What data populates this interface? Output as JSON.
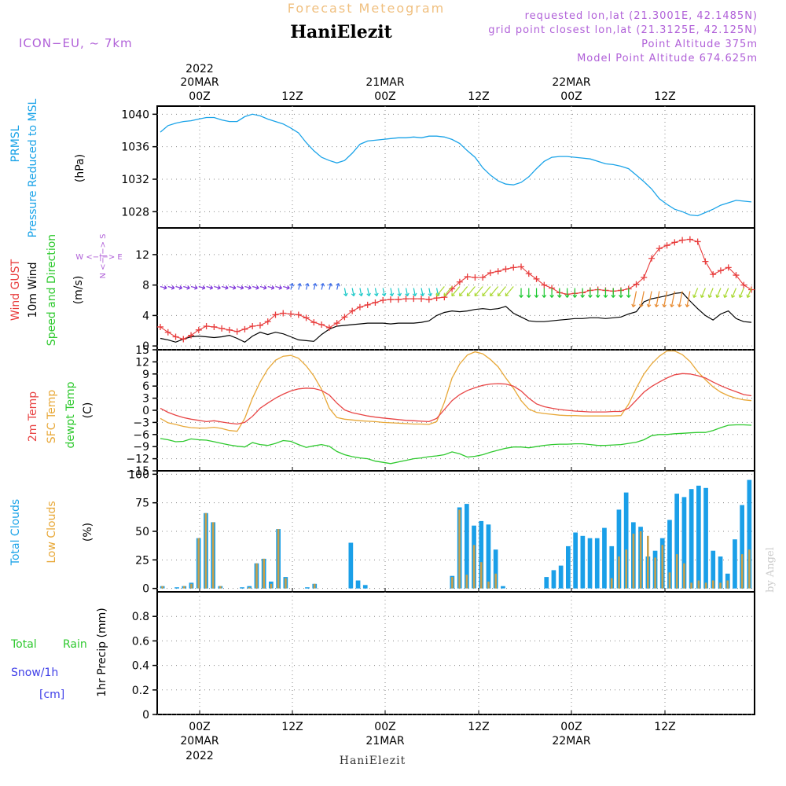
{
  "header": {
    "title": "Forecast Meteogram",
    "location": "HaniElezit",
    "model": "ICON−EU, ~ 7km",
    "requested": "requested lon,lat (21.3001E, 42.1485N)",
    "gridpoint": "grid point closest lon,lat (21.3125E, 42.125N)",
    "point_altitude": "Point Altitude 375m",
    "model_altitude": "Model Point Altitude 674.625m",
    "footer": "HaniElezit",
    "credit": "by Angel"
  },
  "time_axis": {
    "top": {
      "year": "2022",
      "d1": "20MAR",
      "d2": "21MAR",
      "d3": "22MAR",
      "z00": "00Z",
      "z12": "12Z"
    },
    "bottom": {
      "year": "2022",
      "d1": "20MAR",
      "d2": "21MAR",
      "d3": "22MAR",
      "z00": "00Z",
      "z12": "12Z"
    }
  },
  "panel_labels": {
    "p1": {
      "a": "PRMSL",
      "b": "Pressure Reduced to MSL",
      "unit": "(hPa)"
    },
    "p2": {
      "a": "Wind GUST",
      "b": "10m Wind",
      "c": "Speed and Direction",
      "unit": "(m/s)",
      "compass_ns": "N <−|−> S",
      "compass_we": "W <−|−> E"
    },
    "p3": {
      "a": "2m Temp",
      "b": "SFC Temp",
      "c": "dewpt Temp",
      "unit": "(C)"
    },
    "p4": {
      "a": "Total Clouds",
      "b": "Low Clouds",
      "unit": "(%)"
    },
    "p5": {
      "a": "Total",
      "a2": "Rain",
      "b": "Snow/1h",
      "b2": "[cm]",
      "unit": "1hr Precip (mm)"
    }
  },
  "colors": {
    "pressure": "#1aa3e8",
    "gust": "#e83c3c",
    "wind10m": "#000000",
    "t2m": "#e84545",
    "tsfc": "#e8a838",
    "dewpt": "#2ec92e",
    "total_clouds": "#1a9fe8",
    "low_clouds": "#c8a04a",
    "rain": "#2ec92e",
    "snow": "#4040e8",
    "labels_purple": "#b060d8",
    "title_orange": "#f0c080"
  },
  "chart_data": [
    {
      "type": "line",
      "name": "PRMSL",
      "ylabel": "(hPa)",
      "ylim": [
        1026,
        1041
      ],
      "yticks": [
        "1028",
        "1032",
        "1036",
        "1040"
      ],
      "ytick_values": [
        1028,
        1032,
        1036,
        1040
      ],
      "series": [
        {
          "values": [
            1037.8,
            1038.6,
            1038.9,
            1039.1,
            1039.2,
            1039.4,
            1039.6,
            1039.6,
            1039.3,
            1039.1,
            1039.1,
            1039.7,
            1040.0,
            1039.8,
            1039.4,
            1039.1,
            1038.8,
            1038.3,
            1037.7,
            1036.5,
            1035.5,
            1034.7,
            1034.3,
            1034.0,
            1034.3,
            1035.2,
            1036.3,
            1036.7,
            1036.8,
            1036.9,
            1037.0,
            1037.1,
            1037.1,
            1037.2,
            1037.1,
            1037.3,
            1037.3,
            1037.2,
            1036.9,
            1036.4,
            1035.5,
            1034.7,
            1033.4,
            1032.5,
            1031.8,
            1031.4,
            1031.3,
            1031.6,
            1032.3,
            1033.3,
            1034.2,
            1034.7,
            1034.8,
            1034.8,
            1034.7,
            1034.6,
            1034.5,
            1034.2,
            1033.9,
            1033.8,
            1033.6,
            1033.3,
            1032.5,
            1031.7,
            1030.8,
            1029.6,
            1028.9,
            1028.3,
            1028.0,
            1027.6,
            1027.5,
            1027.9,
            1028.3,
            1028.8,
            1029.1,
            1029.4,
            1029.3,
            1029.2
          ]
        }
      ]
    },
    {
      "type": "line",
      "name": "Wind",
      "ylabel": "(m/s)",
      "ylim": [
        -0.5,
        15.5
      ],
      "yticks": [
        "0",
        "4",
        "8",
        "12"
      ],
      "ytick_values": [
        0,
        4,
        8,
        12
      ],
      "series": [
        {
          "key": "gust",
          "values": [
            2.5,
            1.8,
            1.2,
            0.9,
            1.4,
            2.1,
            2.6,
            2.5,
            2.3,
            2.1,
            1.9,
            2.2,
            2.6,
            2.7,
            3.2,
            4.1,
            4.3,
            4.2,
            4.1,
            3.7,
            3.1,
            2.8,
            2.4,
            3.0,
            3.8,
            4.6,
            5.1,
            5.4,
            5.7,
            6.0,
            6.1,
            6.1,
            6.2,
            6.2,
            6.2,
            6.1,
            6.3,
            6.4,
            7.5,
            8.4,
            9.1,
            9.0,
            9.0,
            9.6,
            9.8,
            10.1,
            10.3,
            10.4,
            9.5,
            8.8,
            8.0,
            7.6,
            7.0,
            6.8,
            6.9,
            7.0,
            7.3,
            7.4,
            7.3,
            7.2,
            7.3,
            7.5,
            8.1,
            9.0,
            11.5,
            12.8,
            13.2,
            13.6,
            13.9,
            14.0,
            13.7,
            11.1,
            9.4,
            9.9,
            10.3,
            9.3,
            8.0,
            7.4
          ]
        },
        {
          "key": "wind10m",
          "values": [
            1.0,
            0.8,
            0.5,
            0.9,
            1.2,
            1.3,
            1.2,
            1.1,
            1.2,
            1.4,
            1.0,
            0.5,
            1.3,
            1.8,
            1.5,
            1.8,
            1.6,
            1.2,
            0.8,
            0.7,
            0.6,
            1.5,
            2.2,
            2.6,
            2.7,
            2.8,
            2.9,
            3.0,
            3.0,
            3.0,
            2.9,
            3.0,
            3.0,
            3.0,
            3.1,
            3.3,
            4.0,
            4.4,
            4.6,
            4.5,
            4.6,
            4.8,
            4.9,
            4.8,
            4.9,
            5.2,
            4.3,
            3.8,
            3.3,
            3.2,
            3.2,
            3.3,
            3.4,
            3.5,
            3.6,
            3.6,
            3.7,
            3.7,
            3.6,
            3.7,
            3.8,
            4.2,
            4.5,
            5.8,
            6.2,
            6.4,
            6.6,
            6.9,
            7.0,
            5.9,
            4.9,
            4.0,
            3.4,
            4.2,
            4.6,
            3.6,
            3.2,
            3.1
          ]
        }
      ]
    },
    {
      "type": "line",
      "name": "Temperature",
      "ylabel": "(C)",
      "ylim": [
        -15,
        15
      ],
      "yticks": [
        "15",
        "12",
        "9",
        "6",
        "3",
        "0",
        "−3",
        "−6",
        "−9",
        "−12",
        "−15"
      ],
      "ytick_values": [
        15,
        12,
        9,
        6,
        3,
        0,
        -3,
        -6,
        -9,
        -12,
        -15
      ],
      "series": [
        {
          "key": "t2m",
          "values": [
            0.5,
            -0.5,
            -1.2,
            -1.8,
            -2.2,
            -2.5,
            -2.8,
            -2.6,
            -2.9,
            -3.2,
            -3.4,
            -3.0,
            -1.5,
            0.5,
            1.8,
            3.0,
            4.0,
            4.8,
            5.3,
            5.5,
            5.4,
            4.9,
            3.8,
            1.8,
            0.1,
            -0.6,
            -1.0,
            -1.4,
            -1.7,
            -1.9,
            -2.1,
            -2.3,
            -2.5,
            -2.6,
            -2.7,
            -2.8,
            -2.0,
            0.2,
            2.4,
            3.9,
            4.9,
            5.6,
            6.2,
            6.5,
            6.6,
            6.5,
            6.0,
            4.8,
            3.0,
            1.6,
            0.9,
            0.5,
            0.2,
            0.0,
            -0.2,
            -0.3,
            -0.4,
            -0.4,
            -0.4,
            -0.3,
            -0.3,
            0.5,
            2.5,
            4.5,
            5.9,
            7.0,
            8.0,
            8.8,
            9.1,
            9.0,
            8.6,
            8.0,
            7.0,
            6.1,
            5.3,
            4.6,
            3.9,
            3.6
          ]
        },
        {
          "key": "tsfc",
          "values": [
            -2.0,
            -3.1,
            -3.5,
            -4.0,
            -4.3,
            -4.4,
            -4.4,
            -4.2,
            -4.5,
            -5.0,
            -5.2,
            -2.0,
            3.0,
            7.0,
            10.2,
            12.4,
            13.4,
            13.6,
            12.9,
            11.0,
            8.5,
            5.2,
            0.5,
            -1.8,
            -2.2,
            -2.4,
            -2.6,
            -2.7,
            -2.8,
            -3.0,
            -3.1,
            -3.2,
            -3.3,
            -3.4,
            -3.4,
            -3.5,
            -2.8,
            2.0,
            8.0,
            11.5,
            13.7,
            14.5,
            14.0,
            12.6,
            10.8,
            8.0,
            5.5,
            2.4,
            0.3,
            -0.5,
            -0.8,
            -1.0,
            -1.2,
            -1.3,
            -1.3,
            -1.4,
            -1.4,
            -1.4,
            -1.4,
            -1.4,
            -1.3,
            1.5,
            5.5,
            9.0,
            11.5,
            13.4,
            14.7,
            14.7,
            13.8,
            12.1,
            9.6,
            7.6,
            5.8,
            4.5,
            3.6,
            3.0,
            2.6,
            2.4
          ]
        },
        {
          "key": "dewpt",
          "values": [
            -7.0,
            -7.3,
            -7.8,
            -7.7,
            -7.1,
            -7.3,
            -7.4,
            -7.8,
            -8.2,
            -8.6,
            -8.9,
            -9.1,
            -8.0,
            -8.5,
            -8.7,
            -8.2,
            -7.5,
            -7.7,
            -8.5,
            -9.2,
            -8.8,
            -8.5,
            -8.9,
            -10.2,
            -11.0,
            -11.5,
            -11.8,
            -12.0,
            -12.6,
            -12.9,
            -13.2,
            -12.8,
            -12.4,
            -12.0,
            -11.8,
            -11.5,
            -11.3,
            -11.0,
            -10.3,
            -10.8,
            -11.6,
            -11.4,
            -11.0,
            -10.4,
            -9.9,
            -9.4,
            -9.1,
            -9.1,
            -9.3,
            -9.0,
            -8.7,
            -8.5,
            -8.4,
            -8.4,
            -8.3,
            -8.3,
            -8.5,
            -8.7,
            -8.7,
            -8.6,
            -8.5,
            -8.2,
            -7.9,
            -7.3,
            -6.3,
            -6.0,
            -6.0,
            -5.8,
            -5.7,
            -5.6,
            -5.5,
            -5.5,
            -5.0,
            -4.3,
            -3.7,
            -3.6,
            -3.6,
            -3.7
          ]
        }
      ]
    },
    {
      "type": "bar",
      "name": "Clouds",
      "ylabel": "(%)",
      "ylim": [
        -3,
        103
      ],
      "yticks": [
        "0",
        "25",
        "50",
        "75",
        "100"
      ],
      "ytick_values": [
        0,
        25,
        50,
        75,
        100
      ],
      "series": [
        {
          "key": "total",
          "values": [
            2,
            0,
            1,
            2,
            5,
            44,
            66,
            58,
            2,
            0,
            0,
            1,
            2,
            22,
            26,
            6,
            52,
            10,
            0,
            0,
            1,
            4,
            0,
            0,
            0,
            0,
            40,
            7,
            3,
            0,
            0,
            0,
            0,
            0,
            0,
            0,
            0,
            0,
            0,
            0,
            11,
            71,
            74,
            55,
            59,
            56,
            34,
            2,
            0,
            0,
            0,
            0,
            0,
            10,
            16,
            20,
            37,
            49,
            46,
            44,
            44,
            53,
            37,
            69,
            84,
            58,
            54,
            28,
            33,
            44,
            60,
            83,
            80,
            87,
            90,
            88,
            33,
            28,
            13,
            43,
            73,
            95
          ]
        },
        {
          "key": "low",
          "values": [
            2,
            0,
            0,
            2,
            4,
            44,
            66,
            58,
            2,
            0,
            0,
            0,
            1,
            22,
            26,
            4,
            52,
            9,
            0,
            0,
            0,
            4,
            0,
            0,
            0,
            0,
            0,
            0,
            0,
            0,
            0,
            0,
            0,
            0,
            0,
            0,
            0,
            0,
            0,
            0,
            10,
            69,
            12,
            38,
            23,
            6,
            13,
            0,
            0,
            0,
            0,
            0,
            0,
            0,
            0,
            0,
            0,
            0,
            0,
            0,
            0,
            0,
            9,
            28,
            34,
            48,
            50,
            46,
            27,
            38,
            14,
            30,
            22,
            5,
            7,
            5,
            7,
            5,
            7,
            0,
            30,
            34
          ]
        }
      ]
    },
    {
      "type": "bar",
      "name": "Precipitation",
      "ylabel": "1hr Precip (mm)",
      "ylim": [
        0,
        1
      ],
      "yticks": [
        "0",
        "0.2",
        "0.4",
        "0.6",
        "0.8"
      ],
      "ytick_values": [
        0,
        0.2,
        0.4,
        0.6,
        0.8
      ],
      "series": [
        {
          "key": "rain",
          "values": []
        },
        {
          "key": "snow",
          "values": []
        }
      ]
    }
  ]
}
